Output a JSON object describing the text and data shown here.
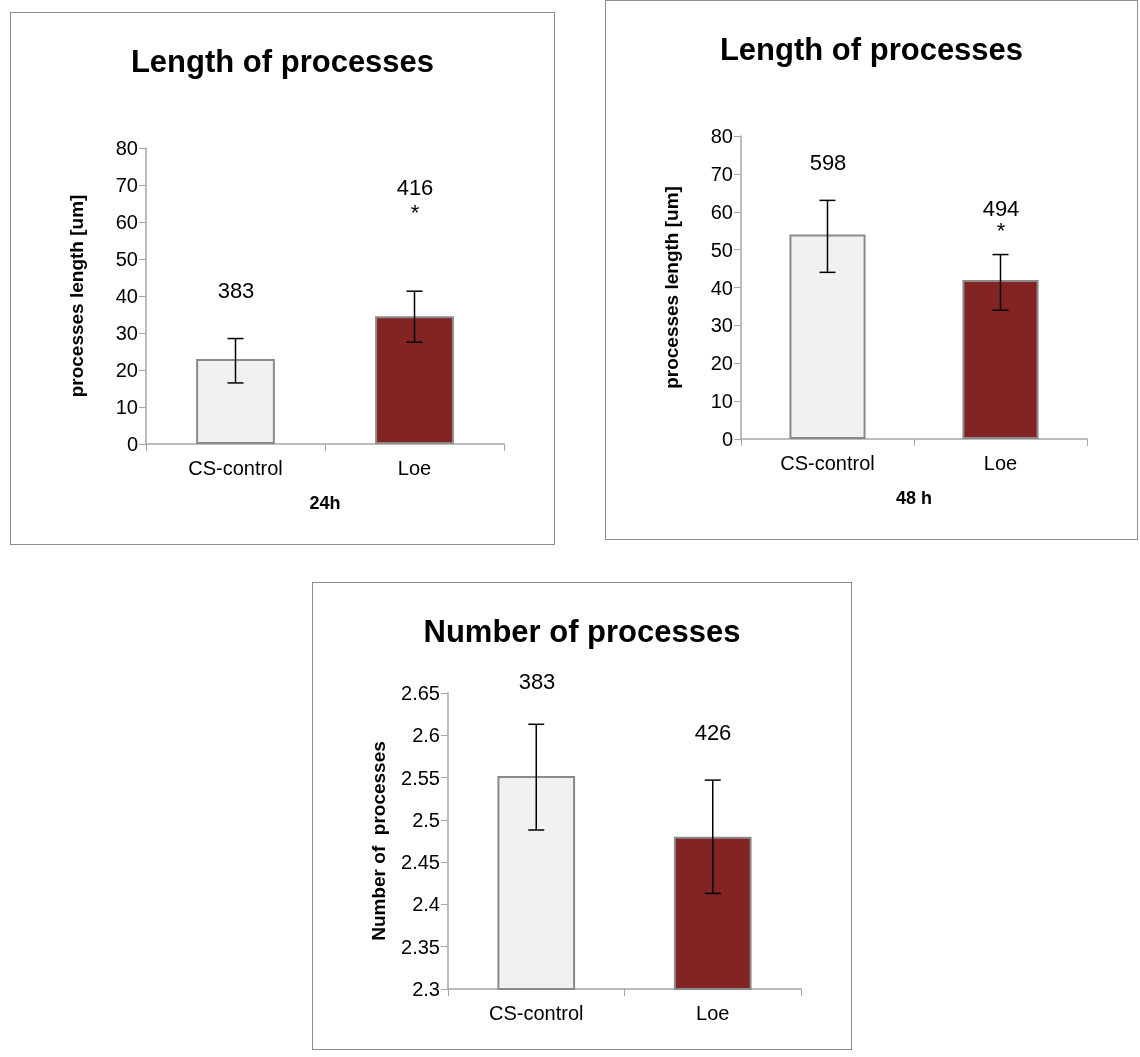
{
  "chart_data": [
    {
      "type": "bar",
      "title": "Length of processes",
      "xlabel": "24h",
      "ylabel": "processes length [um]",
      "categories": [
        "CS-control",
        "Loe"
      ],
      "values": [
        23,
        34.5
      ],
      "colors": [
        "#f2f1ef",
        "#832424"
      ],
      "errors": [
        [
          16.5,
          28.5
        ],
        [
          27.5,
          41.3
        ]
      ],
      "ylim": [
        0,
        80
      ],
      "yticks": [
        0,
        10,
        20,
        30,
        40,
        50,
        60,
        70,
        80
      ],
      "grid": false,
      "annotations": [
        "383",
        "416",
        "*"
      ]
    },
    {
      "type": "bar",
      "title": "Length of processes",
      "xlabel": "48 h",
      "ylabel": "processes length [um]",
      "categories": [
        "CS-control",
        "Loe"
      ],
      "values": [
        54,
        42
      ],
      "colors": [
        "#f2f1ef",
        "#832424"
      ],
      "errors": [
        [
          44,
          63
        ],
        [
          34,
          48.7
        ]
      ],
      "ylim": [
        0,
        80
      ],
      "yticks": [
        0,
        10,
        20,
        30,
        40,
        50,
        60,
        70,
        80
      ],
      "grid": false,
      "annotations": [
        "598",
        "494",
        "*"
      ]
    },
    {
      "type": "bar",
      "title": "Number of processes",
      "ylabel": "Number of  processes",
      "categories": [
        "CS-control",
        "Loe"
      ],
      "values": [
        2.552,
        2.48
      ],
      "colors": [
        "#f2f1ef",
        "#832424"
      ],
      "errors": [
        [
          2.488,
          2.613
        ],
        [
          2.413,
          2.547
        ]
      ],
      "ylim": [
        2.3,
        2.65
      ],
      "yticks": [
        2.3,
        2.35,
        2.4,
        2.45,
        2.5,
        2.55,
        2.6,
        2.65
      ],
      "grid": false,
      "annotations": [
        "383",
        "426"
      ]
    }
  ]
}
